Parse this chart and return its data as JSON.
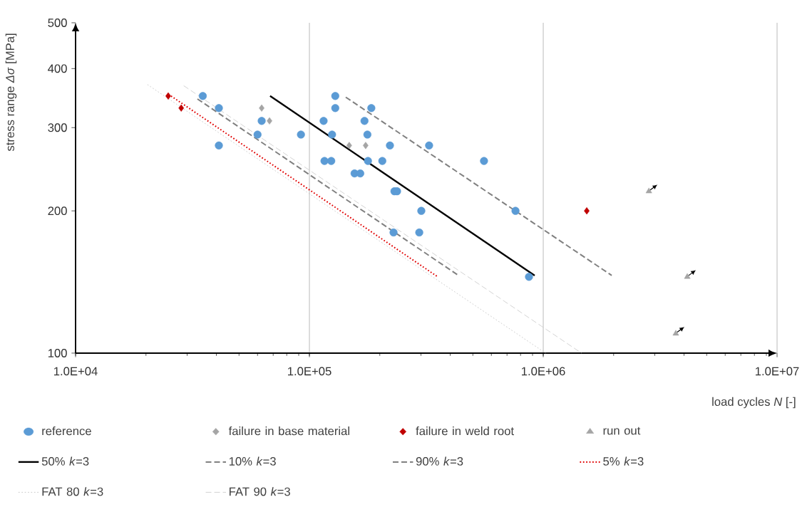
{
  "chart_data": {
    "type": "scatter",
    "xlabel": "load cycles *N* [-]",
    "ylabel": "stress range *Δσ* [MPa]",
    "log": "xy",
    "grid": "x",
    "legend": "bottom",
    "xlim": [
      10000,
      10000000
    ],
    "ylim": [
      100,
      500
    ],
    "xticks": [
      {
        "value": 10000,
        "label": "1.0E+04"
      },
      {
        "value": 100000,
        "label": "1.0E+05"
      },
      {
        "value": 1000000,
        "label": "1.0E+06"
      },
      {
        "value": 10000000,
        "label": "1.0E+07"
      }
    ],
    "yticks": [
      100,
      200,
      300,
      400,
      500
    ],
    "series": [
      {
        "name": "reference",
        "marker": "circle",
        "color": "#5b9bd5",
        "x": [
          35000,
          41000,
          62500,
          60000,
          92000,
          41000,
          129000,
          129000,
          184000,
          115000,
          172000,
          125000,
          177000,
          221000,
          325000,
          116000,
          124000,
          178000,
          205000,
          558000,
          156000,
          165000,
          231000,
          237000,
          301000,
          761000,
          229000,
          295000,
          869000
        ],
        "values": [
          350,
          330,
          310,
          290,
          290,
          275,
          350,
          330,
          330,
          310,
          310,
          290,
          290,
          275,
          275,
          255,
          255,
          255,
          255,
          255,
          240,
          240,
          220,
          220,
          200,
          200,
          180,
          180,
          145
        ]
      },
      {
        "name": "failure in base material",
        "marker": "diamond",
        "color": "#a5a5a5",
        "x": [
          62500,
          67500,
          148000,
          174000
        ],
        "values": [
          330,
          310,
          275,
          275
        ]
      },
      {
        "name": "failure in weld root",
        "marker": "diamond",
        "color": "#c00000",
        "x": [
          24900,
          28300,
          1535000
        ],
        "values": [
          350,
          330,
          200
        ]
      },
      {
        "name": "run out",
        "marker": "triangle",
        "color": "#a5a5a5",
        "x": [
          2830000,
          4130000,
          3690000
        ],
        "values": [
          220,
          145,
          110
        ]
      },
      {
        "name": "50% *k*=3",
        "type": "line",
        "line_style": "solid",
        "color": "#000000",
        "x": [
          67900,
          919000
        ],
        "values": [
          350,
          146
        ]
      },
      {
        "name": "10% *k*=3",
        "type": "line",
        "line_style": "dashed",
        "color": "#808080",
        "x": [
          33200,
          434000
        ],
        "values": [
          345,
          146
        ]
      },
      {
        "name": "90% *k*=3",
        "type": "line",
        "line_style": "dashed",
        "color": "#808080",
        "x": [
          143000,
          1963000
        ],
        "values": [
          348,
          146
        ]
      },
      {
        "name": "5% *k*=3",
        "type": "line",
        "line_style": "dotted",
        "color": "#e00000",
        "x": [
          25600,
          354000
        ],
        "values": [
          350,
          145
        ]
      },
      {
        "name": "FAT 80 *k*=3",
        "type": "line",
        "line_style": "dotted",
        "color": "#bfbfbf",
        "x": [
          20300,
          1024000
        ],
        "values": [
          370,
          100
        ]
      },
      {
        "name": "FAT 90 *k*=3",
        "type": "line",
        "line_style": "dashed",
        "color": "#c8c8c8",
        "x": [
          29000,
          1458000
        ],
        "values": [
          368,
          100
        ]
      }
    ]
  }
}
